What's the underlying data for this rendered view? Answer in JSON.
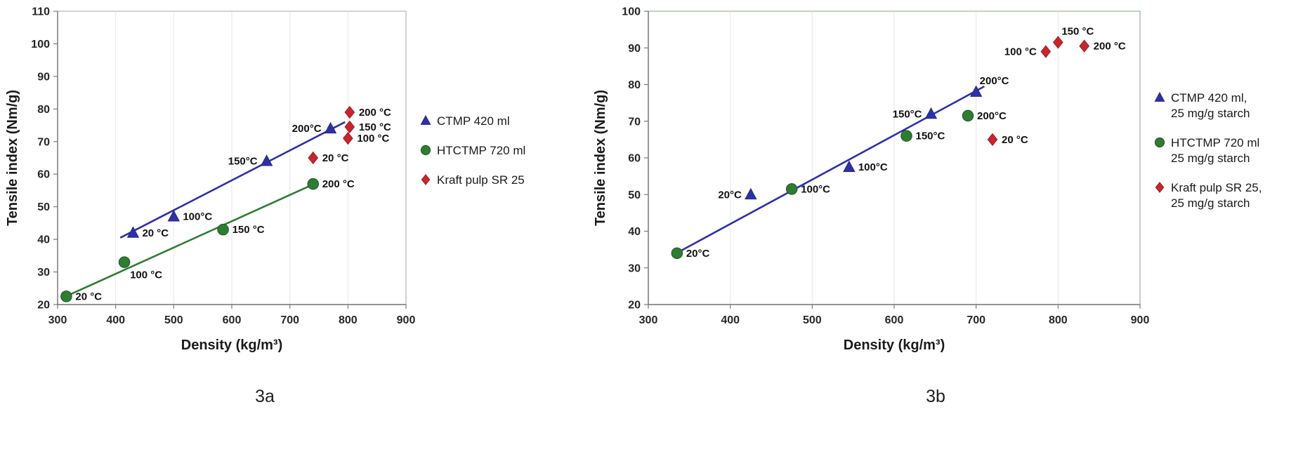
{
  "colors": {
    "ctmp_blue": "#2d31a8",
    "htctmp_green": "#2e7d32",
    "kraft_red": "#c9252c",
    "axis_gray": "#7a7a7a",
    "gridline": "#e6e6e6"
  },
  "chart_data": [
    {
      "id": "3a",
      "type": "scatter",
      "caption": "3a",
      "xlabel": "Density (kg/m³)",
      "ylabel": "Tensile index (Nm/g)",
      "xlim": [
        300,
        900
      ],
      "ylim": [
        20,
        110
      ],
      "xticks": [
        300,
        400,
        500,
        600,
        700,
        800,
        900
      ],
      "yticks": [
        20,
        30,
        40,
        50,
        60,
        70,
        80,
        90,
        100,
        110
      ],
      "grid": "vertical-faint",
      "legend_position": "right",
      "frame_color": "#bfbfbf",
      "series": [
        {
          "name": "CTMP 420 ml",
          "legend_lines": [
            "CTMP 420 ml"
          ],
          "marker": "triangle",
          "color": "#2d31a8",
          "edge": "#1f2370",
          "trendline": {
            "x1": 408,
            "y1": 40.5,
            "x2": 795,
            "y2": 76
          },
          "points": [
            {
              "x": 430,
              "y": 42,
              "label": "20 °C",
              "side": "right"
            },
            {
              "x": 500,
              "y": 47,
              "label": "100°C",
              "side": "right"
            },
            {
              "x": 660,
              "y": 64,
              "label": "150°C",
              "side": "left"
            },
            {
              "x": 770,
              "y": 74,
              "label": "200°C",
              "side": "left"
            }
          ]
        },
        {
          "name": "HTCTMP 720 ml",
          "legend_lines": [
            "HTCTMP 720 ml"
          ],
          "marker": "circle",
          "color": "#2e7d32",
          "edge": "#1c4f1e",
          "trendline": {
            "x1": 308,
            "y1": 22,
            "x2": 748,
            "y2": 57.5
          },
          "points": [
            {
              "x": 315,
              "y": 22.5,
              "label": "20 °C",
              "side": "right"
            },
            {
              "x": 415,
              "y": 33,
              "label": "100 °C",
              "side": "below-right"
            },
            {
              "x": 585,
              "y": 43,
              "label": "150 °C",
              "side": "right"
            },
            {
              "x": 740,
              "y": 57,
              "label": "200 °C",
              "side": "right"
            }
          ]
        },
        {
          "name": "Kraft pulp SR 25",
          "legend_lines": [
            "Kraft pulp SR 25"
          ],
          "marker": "diamond",
          "color": "#c9252c",
          "edge": "#8d181d",
          "points": [
            {
              "x": 740,
              "y": 65,
              "label": "20 °C",
              "side": "right"
            },
            {
              "x": 800,
              "y": 71,
              "label": "100 °C",
              "side": "right"
            },
            {
              "x": 803,
              "y": 74.5,
              "label": "150 °C",
              "side": "right"
            },
            {
              "x": 803,
              "y": 79,
              "label": "200 °C",
              "side": "right"
            }
          ]
        }
      ]
    },
    {
      "id": "3b",
      "type": "scatter",
      "caption": "3b",
      "xlabel": "Density (kg/m³)",
      "ylabel": "Tensile index (Nm/g)",
      "xlim": [
        300,
        900
      ],
      "ylim": [
        20,
        100
      ],
      "xticks": [
        300,
        400,
        500,
        600,
        700,
        800,
        900
      ],
      "yticks": [
        20,
        30,
        40,
        50,
        60,
        70,
        80,
        90,
        100
      ],
      "grid": "vertical-faint",
      "legend_position": "right",
      "frame_color": "#a3c2a3",
      "series": [
        {
          "name": "CTMP 420 ml, 25 mg/g starch",
          "legend_lines": [
            "CTMP 420 ml,",
            "25 mg/g starch"
          ],
          "marker": "triangle",
          "color": "#2d31a8",
          "edge": "#1f2370",
          "trendline": {
            "x1": 330,
            "y1": 33.5,
            "x2": 710,
            "y2": 79.5
          },
          "points": [
            {
              "x": 425,
              "y": 50,
              "label": "20°C",
              "side": "left"
            },
            {
              "x": 545,
              "y": 57.5,
              "label": "100°C",
              "side": "right"
            },
            {
              "x": 645,
              "y": 72,
              "label": "150°C",
              "side": "left"
            },
            {
              "x": 700,
              "y": 78,
              "label": "200°C",
              "side": "above-right"
            }
          ]
        },
        {
          "name": "HTCTMP 720 ml 25 mg/g starch",
          "legend_lines": [
            "HTCTMP 720 ml",
            "25 mg/g starch"
          ],
          "marker": "circle",
          "color": "#2e7d32",
          "edge": "#1c4f1e",
          "points": [
            {
              "x": 335,
              "y": 34,
              "label": "20°C",
              "side": "right"
            },
            {
              "x": 475,
              "y": 51.5,
              "label": "100°C",
              "side": "right"
            },
            {
              "x": 615,
              "y": 66,
              "label": "150°C",
              "side": "right"
            },
            {
              "x": 690,
              "y": 71.5,
              "label": "200°C",
              "side": "right"
            }
          ]
        },
        {
          "name": "Kraft pulp SR 25, 25 mg/g starch",
          "legend_lines": [
            "Kraft pulp SR 25,",
            "25 mg/g starch"
          ],
          "marker": "diamond",
          "color": "#c9252c",
          "edge": "#8d181d",
          "points": [
            {
              "x": 720,
              "y": 65,
              "label": "20 °C",
              "side": "right"
            },
            {
              "x": 785,
              "y": 89,
              "label": "100 °C",
              "side": "left"
            },
            {
              "x": 800,
              "y": 91.5,
              "label": "150 °C",
              "side": "above-right"
            },
            {
              "x": 832,
              "y": 90.5,
              "label": "200 °C",
              "side": "right"
            }
          ]
        }
      ]
    }
  ]
}
